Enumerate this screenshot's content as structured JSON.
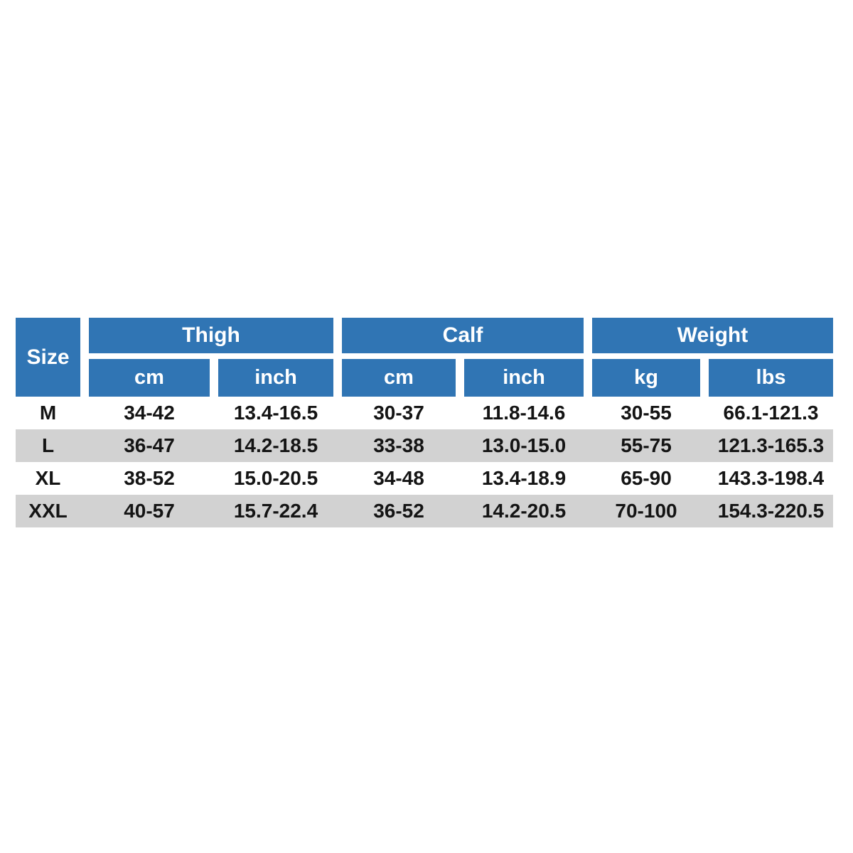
{
  "table": {
    "corner_label": "Size",
    "groups": [
      {
        "label": "Thigh"
      },
      {
        "label": "Calf"
      },
      {
        "label": "Weight"
      }
    ],
    "subheaders": [
      "cm",
      "inch",
      "cm",
      "inch",
      "kg",
      "lbs"
    ],
    "rows": [
      {
        "size": "M",
        "values": [
          "34-42",
          "13.4-16.5",
          "30-37",
          "11.8-14.6",
          "30-55",
          "66.1-121.3"
        ]
      },
      {
        "size": "L",
        "values": [
          "36-47",
          "14.2-18.5",
          "33-38",
          "13.0-15.0",
          "55-75",
          "121.3-165.3"
        ]
      },
      {
        "size": "XL",
        "values": [
          "38-52",
          "15.0-20.5",
          "34-48",
          "13.4-18.9",
          "65-90",
          "143.3-198.4"
        ]
      },
      {
        "size": "XXL",
        "values": [
          "40-57",
          "15.7-22.4",
          "36-52",
          "14.2-20.5",
          "70-100",
          "154.3-220.5"
        ]
      }
    ],
    "colors": {
      "header_bg": "#3075b4",
      "stripe_bg": "#d2d2d2",
      "header_text": "#ffffff",
      "data_text": "#141414"
    }
  },
  "chart_data": {
    "type": "table",
    "columns": [
      "Size",
      "Thigh cm",
      "Thigh inch",
      "Calf cm",
      "Calf inch",
      "Weight kg",
      "Weight lbs"
    ],
    "rows": [
      [
        "M",
        "34-42",
        "13.4-16.5",
        "30-37",
        "11.8-14.6",
        "30-55",
        "66.1-121.3"
      ],
      [
        "L",
        "36-47",
        "14.2-18.5",
        "33-38",
        "13.0-15.0",
        "55-75",
        "121.3-165.3"
      ],
      [
        "XL",
        "38-52",
        "15.0-20.5",
        "34-48",
        "13.4-18.9",
        "65-90",
        "143.3-198.4"
      ],
      [
        "XXL",
        "40-57",
        "15.7-22.4",
        "36-52",
        "14.2-20.5",
        "70-100",
        "154.3-220.5"
      ]
    ],
    "layout_hints": {
      "header_rows": 2,
      "unit_pairs": [
        [
          "cm",
          "inch"
        ],
        [
          "cm",
          "inch"
        ],
        [
          "kg",
          "lbs"
        ]
      ],
      "striped_rows": [
        "L",
        "XXL"
      ],
      "grid": "off",
      "legend": "none"
    }
  }
}
